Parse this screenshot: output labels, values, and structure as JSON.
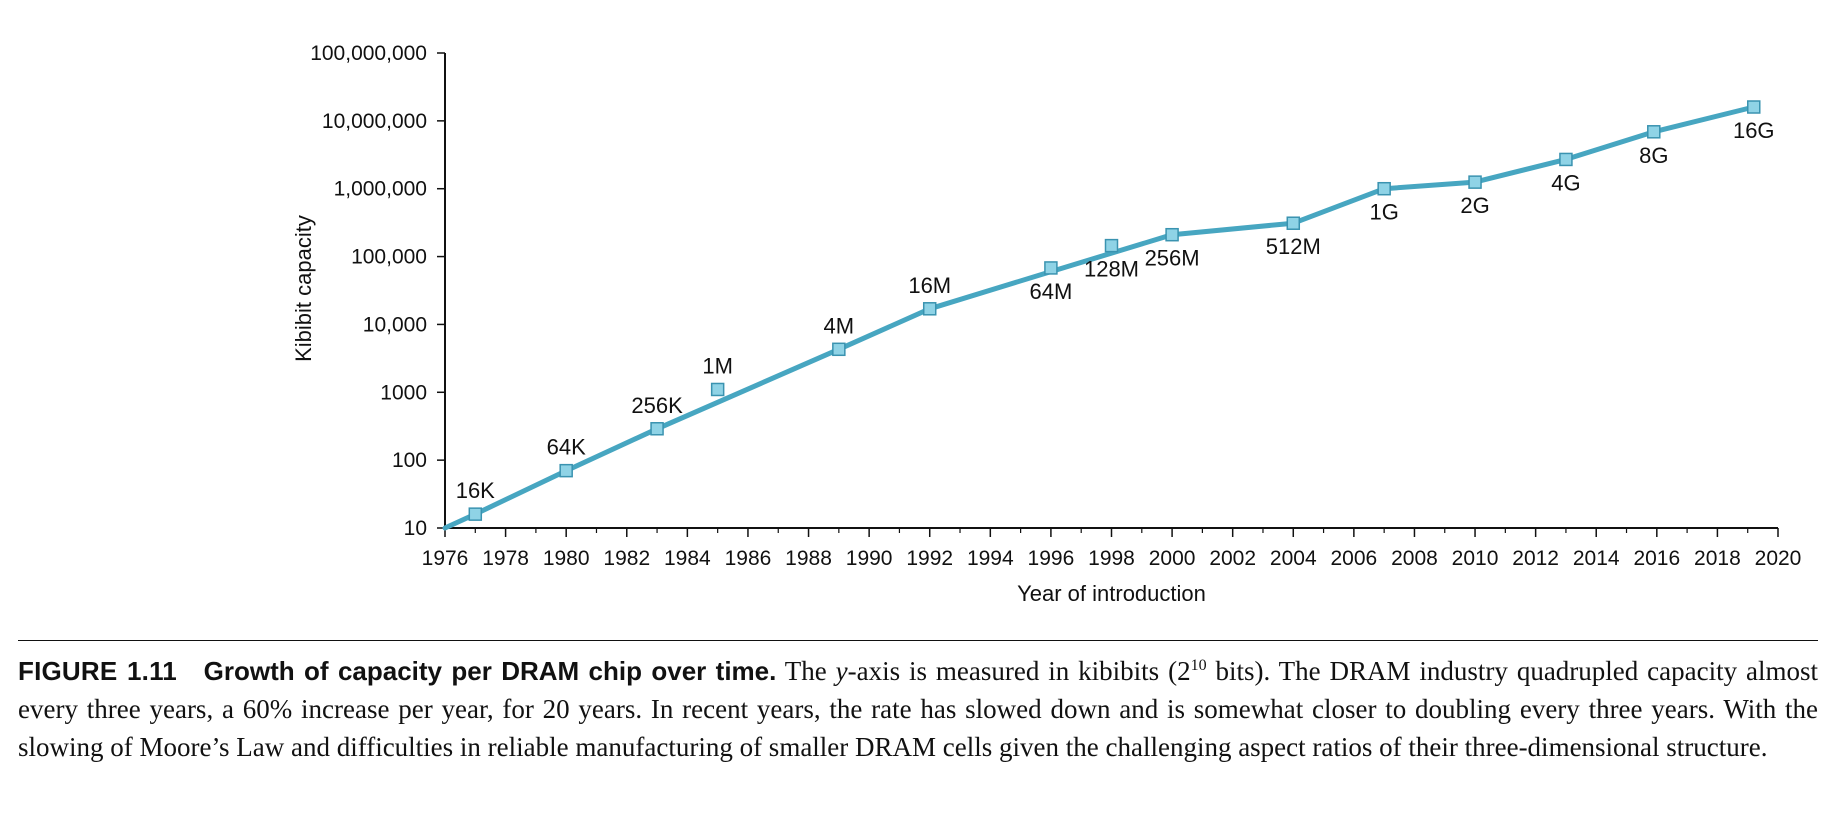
{
  "colors": {
    "line": "#47a6c1",
    "marker_fill": "#8fd3e6",
    "marker_stroke": "#3a93b0",
    "axis": "#111111"
  },
  "chart_data": {
    "type": "line",
    "xlabel": "Year of introduction",
    "ylabel": "Kibibit capacity",
    "xlim": [
      1976,
      2020
    ],
    "ylim": [
      10,
      100000000
    ],
    "yscale": "log",
    "grid": false,
    "x_ticks": [
      "1976",
      "1978",
      "1980",
      "1982",
      "1984",
      "1986",
      "1988",
      "1990",
      "1992",
      "1994",
      "1996",
      "1998",
      "2000",
      "2002",
      "2004",
      "2006",
      "2008",
      "2010",
      "2012",
      "2014",
      "2016",
      "2018",
      "2020"
    ],
    "y_ticks": [
      {
        "value": 10,
        "label": "10"
      },
      {
        "value": 100,
        "label": "100"
      },
      {
        "value": 1000,
        "label": "1000"
      },
      {
        "value": 10000,
        "label": "10,000"
      },
      {
        "value": 100000,
        "label": "100,000"
      },
      {
        "value": 1000000,
        "label": "1,000,000"
      },
      {
        "value": 10000000,
        "label": "10,000,000"
      },
      {
        "value": 100000000,
        "label": "100,000,000"
      }
    ],
    "line_points": [
      {
        "x": 1976,
        "y": 10
      },
      {
        "x": 1977,
        "y": 16
      },
      {
        "x": 1980,
        "y": 70
      },
      {
        "x": 1983,
        "y": 290
      },
      {
        "x": 1989,
        "y": 4300
      },
      {
        "x": 1992,
        "y": 17000
      },
      {
        "x": 1996,
        "y": 60000
      },
      {
        "x": 2000,
        "y": 210000
      },
      {
        "x": 2004,
        "y": 310000
      },
      {
        "x": 2007,
        "y": 1000000
      },
      {
        "x": 2010,
        "y": 1250000
      },
      {
        "x": 2013,
        "y": 2700000
      },
      {
        "x": 2015.9,
        "y": 6900000
      },
      {
        "x": 2019.2,
        "y": 16000000
      }
    ],
    "points": [
      {
        "label": "16K",
        "x": 1977,
        "y": 16,
        "pos": "above"
      },
      {
        "label": "64K",
        "x": 1980,
        "y": 70,
        "pos": "above"
      },
      {
        "label": "256K",
        "x": 1983,
        "y": 290,
        "pos": "above"
      },
      {
        "label": "1M",
        "x": 1985,
        "y": 1100,
        "pos": "above"
      },
      {
        "label": "4M",
        "x": 1989,
        "y": 4300,
        "pos": "above"
      },
      {
        "label": "16M",
        "x": 1992,
        "y": 17000,
        "pos": "above"
      },
      {
        "label": "64M",
        "x": 1996,
        "y": 68000,
        "pos": "below"
      },
      {
        "label": "128M",
        "x": 1998,
        "y": 145000,
        "pos": "below"
      },
      {
        "label": "256M",
        "x": 2000,
        "y": 210000,
        "pos": "below"
      },
      {
        "label": "512M",
        "x": 2004,
        "y": 310000,
        "pos": "below"
      },
      {
        "label": "1G",
        "x": 2007,
        "y": 1000000,
        "pos": "below"
      },
      {
        "label": "2G",
        "x": 2010,
        "y": 1250000,
        "pos": "below"
      },
      {
        "label": "4G",
        "x": 2013,
        "y": 2700000,
        "pos": "below"
      },
      {
        "label": "8G",
        "x": 2015.9,
        "y": 6900000,
        "pos": "below"
      },
      {
        "label": "16G",
        "x": 2019.2,
        "y": 16000000,
        "pos": "below"
      }
    ]
  },
  "caption": {
    "figure_label": "FIGURE 1.11",
    "figure_title": "Growth of capacity per DRAM chip over time.",
    "text_1": "The ",
    "y_italic": "y",
    "text_2": "-axis is measured in kibibits (2",
    "superscript": "10",
    "text_3": " bits). The DRAM industry quadrupled capacity almost every three years, a 60% increase per year, for 20 years. In recent years, the rate has slowed down and is somewhat closer to doubling every three years. With the slowing of Moore’s Law and difficulties in reliable manufacturing of smaller DRAM cells given the challenging aspect ratios of their three-dimensional structure."
  }
}
